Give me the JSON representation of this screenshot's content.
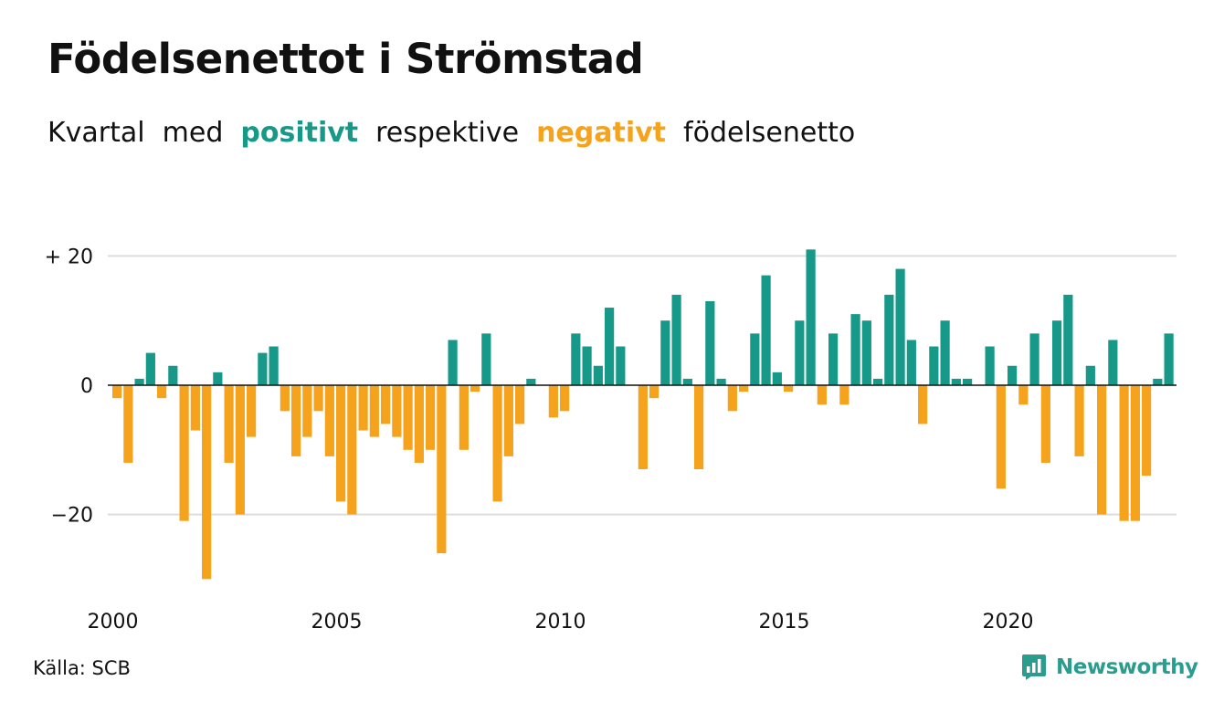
{
  "title": "Födelsenettot i Strömstad",
  "subtitle": {
    "w1": "Kvartal",
    "w2": "med",
    "positive": "positivt",
    "w3": "respektive",
    "negative": "negativt",
    "w4": "födelsenetto"
  },
  "source": "Källa: SCB",
  "brand": {
    "name": "Newsworthy",
    "icon": "newsworthy-logo-icon"
  },
  "colors": {
    "positive": "#17998a",
    "negative": "#f5a21c",
    "brand": "#2a9d8f"
  },
  "chart_data": {
    "type": "bar",
    "title": "Födelsenettot i Strömstad",
    "subtitle": "Kvartal med positivt respektive negativt födelsenetto",
    "xlabel": "",
    "ylabel": "",
    "ylim": [
      -30,
      21
    ],
    "y_ticks": [
      20,
      0,
      -20
    ],
    "y_tick_labels": [
      "+ 20",
      "0",
      "−20"
    ],
    "x_ticks": [
      2000,
      2005,
      2010,
      2015,
      2020
    ],
    "x_tick_labels": [
      "2000",
      "2005",
      "2010",
      "2015",
      "2020"
    ],
    "grid": true,
    "legend": "none",
    "start": "2000 Q1",
    "frequency": "quarterly",
    "values": [
      -2,
      -12,
      1,
      5,
      -2,
      3,
      -21,
      -7,
      -30,
      2,
      -12,
      -20,
      -8,
      5,
      6,
      -4,
      -11,
      -8,
      -4,
      -11,
      -18,
      -20,
      -7,
      -8,
      -6,
      -8,
      -10,
      -12,
      -10,
      -26,
      7,
      -10,
      -1,
      8,
      -18,
      -11,
      -6,
      1,
      0,
      -5,
      -4,
      8,
      6,
      3,
      12,
      6,
      0,
      -13,
      -2,
      10,
      14,
      1,
      -13,
      13,
      1,
      -4,
      -1,
      8,
      17,
      2,
      -1,
      10,
      21,
      -3,
      8,
      -3,
      11,
      10,
      1,
      14,
      18,
      7,
      -6,
      6,
      10,
      1,
      1,
      0,
      6,
      -16,
      3,
      -3,
      8,
      -12,
      10,
      14,
      -11,
      3,
      -20,
      7,
      -21,
      -21,
      -14,
      1,
      8
    ]
  }
}
